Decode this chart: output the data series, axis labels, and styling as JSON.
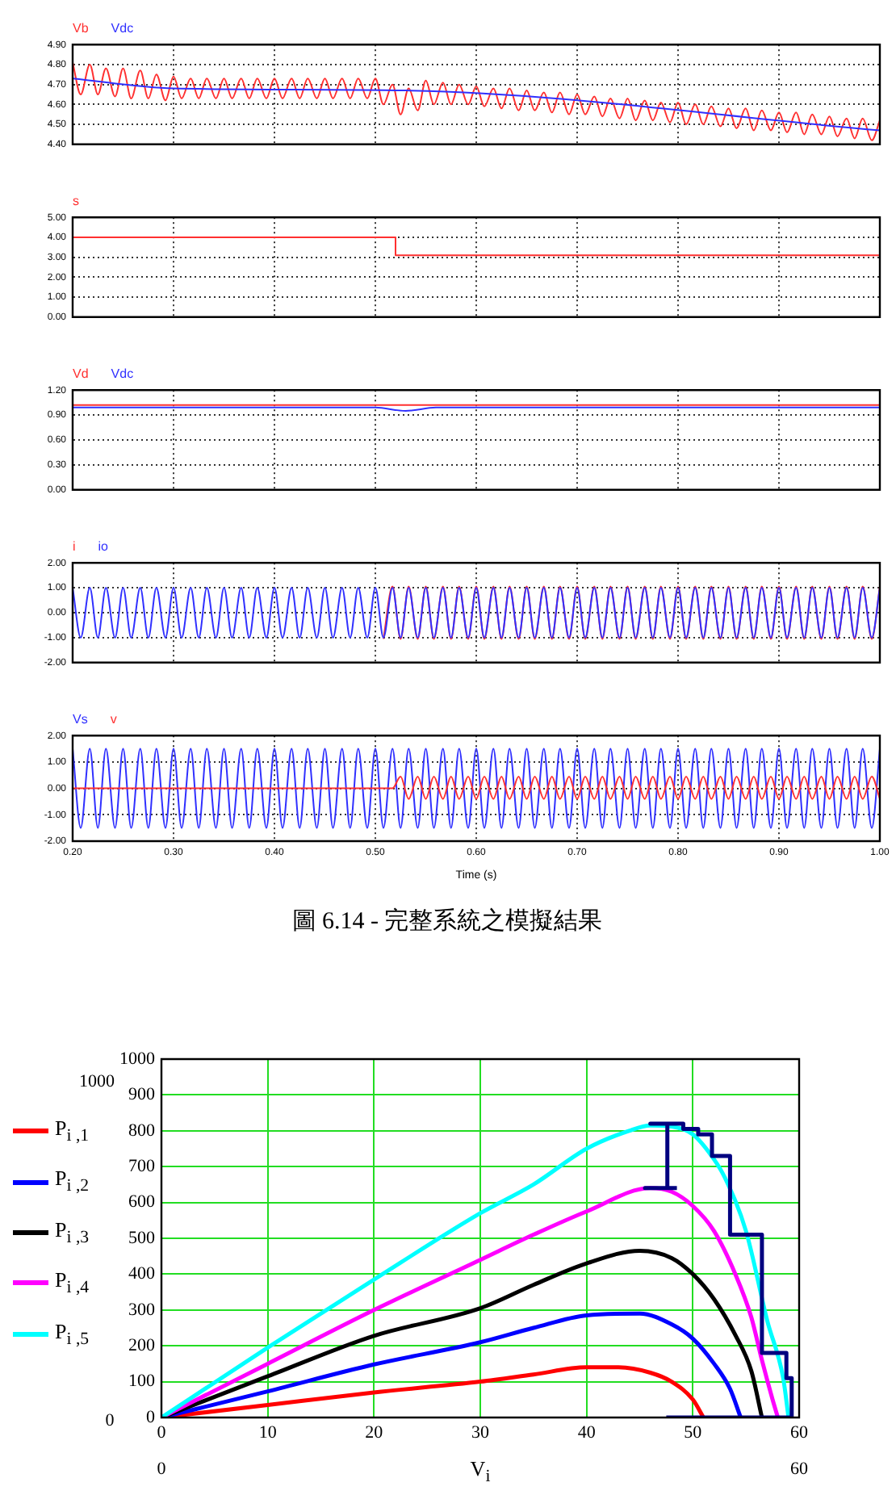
{
  "chart_data": [
    {
      "type": "line",
      "x": [
        0.2,
        0.208,
        0.217,
        0.225,
        0.233,
        0.242,
        0.25,
        0.258,
        0.267,
        0.275,
        0.283,
        0.292,
        0.3,
        0.308,
        0.317,
        0.325,
        0.333,
        0.342,
        0.35,
        0.358,
        0.367,
        0.375,
        0.383,
        0.392,
        0.4,
        0.408,
        0.417,
        0.425,
        0.433,
        0.442,
        0.45,
        0.458,
        0.467,
        0.475,
        0.483,
        0.492,
        0.5,
        0.508,
        0.517,
        0.525,
        0.533,
        0.542,
        0.55,
        0.558,
        0.567,
        0.575,
        0.583,
        0.592,
        0.6,
        0.608,
        0.617,
        0.625,
        0.633,
        0.642,
        0.65,
        0.658,
        0.667,
        0.675,
        0.683,
        0.692,
        0.7,
        0.708,
        0.717,
        0.725,
        0.733,
        0.742,
        0.75,
        0.758,
        0.767,
        0.775,
        0.783,
        0.792,
        0.8,
        0.808,
        0.817,
        0.825,
        0.833,
        0.842,
        0.85,
        0.858,
        0.867,
        0.875,
        0.883,
        0.892,
        0.9,
        0.908,
        0.917,
        0.925,
        0.933,
        0.942,
        0.95,
        0.958,
        0.967,
        0.975,
        0.983,
        0.992,
        1.0
      ],
      "xlim": [
        0.2,
        1.0
      ],
      "xticks": [
        0.2,
        0.3,
        0.4,
        0.5,
        0.6,
        0.7,
        0.8,
        0.9,
        1.0
      ],
      "ylim": [
        4.4,
        4.9
      ],
      "yticks": [
        {
          "value": 4.4,
          "label": "4.40"
        },
        {
          "value": 4.5,
          "label": "4.50"
        },
        {
          "value": 4.6,
          "label": "4.60"
        },
        {
          "value": 4.7,
          "label": "4.70"
        },
        {
          "value": 4.8,
          "label": "4.80"
        },
        {
          "value": 4.9,
          "label": "4.90"
        }
      ],
      "grid": true,
      "legend": "top left",
      "tick_labels": "y",
      "series": [
        {
          "name": "Vb",
          "color": "#ff3030",
          "values": [
            4.81,
            4.65,
            4.8,
            4.65,
            4.78,
            4.64,
            4.78,
            4.63,
            4.77,
            4.63,
            4.75,
            4.62,
            4.74,
            4.63,
            4.73,
            4.63,
            4.73,
            4.63,
            4.73,
            4.63,
            4.73,
            4.63,
            4.73,
            4.63,
            4.73,
            4.63,
            4.73,
            4.63,
            4.73,
            4.63,
            4.73,
            4.63,
            4.73,
            4.63,
            4.73,
            4.63,
            4.73,
            4.6,
            4.7,
            4.55,
            4.68,
            4.57,
            4.72,
            4.6,
            4.71,
            4.6,
            4.7,
            4.6,
            4.69,
            4.59,
            4.68,
            4.58,
            4.68,
            4.57,
            4.67,
            4.57,
            4.66,
            4.56,
            4.66,
            4.55,
            4.65,
            4.55,
            4.64,
            4.54,
            4.63,
            4.53,
            4.63,
            4.52,
            4.62,
            4.52,
            4.61,
            4.51,
            4.61,
            4.5,
            4.6,
            4.5,
            4.59,
            4.49,
            4.58,
            4.48,
            4.58,
            4.47,
            4.57,
            4.47,
            4.56,
            4.46,
            4.56,
            4.45,
            4.55,
            4.45,
            4.54,
            4.44,
            4.53,
            4.43,
            4.53,
            4.42,
            4.52
          ]
        },
        {
          "name": "Vdc",
          "color": "#3030ff",
          "x": [
            0.2,
            0.3,
            0.53,
            1.0
          ],
          "values": [
            4.73,
            4.68,
            4.67,
            4.47
          ]
        }
      ]
    },
    {
      "type": "line",
      "xlim": [
        0.2,
        1.0
      ],
      "xticks": [
        0.2,
        0.3,
        0.4,
        0.5,
        0.6,
        0.7,
        0.8,
        0.9,
        1.0
      ],
      "ylim": [
        0,
        5
      ],
      "yticks": [
        {
          "value": 0,
          "label": "0.00"
        },
        {
          "value": 1,
          "label": "1.00"
        },
        {
          "value": 2,
          "label": "2.00"
        },
        {
          "value": 3,
          "label": "3.00"
        },
        {
          "value": 4,
          "label": "4.00"
        },
        {
          "value": 5,
          "label": "5.00"
        }
      ],
      "grid": true,
      "legend": "top left",
      "tick_labels": "y",
      "series": [
        {
          "name": "s",
          "color": "#ff3030",
          "x": [
            0.2,
            0.52,
            0.52,
            1.0
          ],
          "values": [
            4,
            4,
            3.1,
            3.1
          ]
        }
      ]
    },
    {
      "type": "line",
      "xlim": [
        0.2,
        1.0
      ],
      "xticks": [
        0.2,
        0.3,
        0.4,
        0.5,
        0.6,
        0.7,
        0.8,
        0.9,
        1.0
      ],
      "ylim": [
        0,
        1.2
      ],
      "yticks": [
        {
          "value": 0,
          "label": "0.00"
        },
        {
          "value": 0.3,
          "label": "0.30"
        },
        {
          "value": 0.6,
          "label": "0.60"
        },
        {
          "value": 0.9,
          "label": "0.90"
        },
        {
          "value": 1.2,
          "label": "1.20"
        }
      ],
      "grid": true,
      "legend": "top left",
      "tick_labels": "y",
      "series": [
        {
          "name": "Vd",
          "color": "#ff3030",
          "x": [
            0.2,
            0.5,
            0.53,
            0.56,
            1.0
          ],
          "values": [
            1.02,
            1.02,
            1.02,
            1.02,
            1.02
          ]
        },
        {
          "name": "Vdc",
          "color": "#3030ff",
          "x": [
            0.2,
            0.5,
            0.53,
            0.56,
            1.0
          ],
          "values": [
            0.99,
            0.99,
            0.95,
            0.99,
            0.99
          ]
        }
      ]
    },
    {
      "type": "line",
      "x": [
        0.2,
        0.208,
        0.217,
        0.225,
        0.233,
        0.242,
        0.25,
        0.258,
        0.267,
        0.275,
        0.283,
        0.292,
        0.3,
        0.308,
        0.317,
        0.325,
        0.333,
        0.342,
        0.35,
        0.358,
        0.367,
        0.375,
        0.383,
        0.392,
        0.4,
        0.408,
        0.417,
        0.425,
        0.433,
        0.442,
        0.45,
        0.458,
        0.467,
        0.475,
        0.483,
        0.492,
        0.5,
        0.508,
        0.517,
        0.525,
        0.533,
        0.542,
        0.55,
        0.558,
        0.567,
        0.575,
        0.583,
        0.592,
        0.6,
        0.608,
        0.617,
        0.625,
        0.633,
        0.642,
        0.65,
        0.658,
        0.667,
        0.675,
        0.683,
        0.692,
        0.7,
        0.708,
        0.717,
        0.725,
        0.733,
        0.742,
        0.75,
        0.758,
        0.767,
        0.775,
        0.783,
        0.792,
        0.8,
        0.808,
        0.817,
        0.825,
        0.833,
        0.842,
        0.85,
        0.858,
        0.867,
        0.875,
        0.883,
        0.892,
        0.9,
        0.908,
        0.917,
        0.925,
        0.933,
        0.942,
        0.95,
        0.958,
        0.967,
        0.975,
        0.983,
        0.992,
        1.0
      ],
      "xlim": [
        0.2,
        1.0
      ],
      "xticks": [
        0.2,
        0.3,
        0.4,
        0.5,
        0.6,
        0.7,
        0.8,
        0.9,
        1.0
      ],
      "ylim": [
        -2,
        2
      ],
      "yticks": [
        {
          "value": -2,
          "label": "-2.00"
        },
        {
          "value": -1,
          "label": "-1.00"
        },
        {
          "value": 0,
          "label": "0.00"
        },
        {
          "value": 1,
          "label": "1.00"
        },
        {
          "value": 2,
          "label": "2.00"
        }
      ],
      "grid": true,
      "legend": "top left",
      "tick_labels": "y",
      "series": [
        {
          "name": "i",
          "color": "#ff3030",
          "values": [
            null,
            null,
            null,
            null,
            null,
            null,
            null,
            null,
            null,
            null,
            null,
            null,
            null,
            null,
            null,
            null,
            null,
            null,
            null,
            null,
            null,
            null,
            null,
            null,
            null,
            null,
            null,
            null,
            null,
            null,
            null,
            null,
            null,
            null,
            null,
            null,
            null,
            -1.05,
            1.05,
            -1.05,
            1.05,
            -1.05,
            1.05,
            -1.05,
            1.05,
            -1.05,
            1.05,
            -1.05,
            1.05,
            -1.05,
            1.05,
            -1.05,
            1.05,
            -1.05,
            1.05,
            -1.05,
            1.05,
            -1.05,
            1.05,
            -1.05,
            1.05,
            -1.05,
            1.05,
            -1.05,
            1.05,
            -1.05,
            1.05,
            -1.05,
            1.05,
            -1.05,
            1.05,
            -1.05,
            1.05,
            -1.05,
            1.05,
            -1.05,
            1.05,
            -1.05,
            1.05,
            -1.05,
            1.05,
            -1.05,
            1.05,
            -1.05,
            1.05,
            -1.05,
            1.05,
            -1.05,
            1.05,
            -1.05,
            1.05,
            -1.05,
            1.05,
            -1.05,
            1.05,
            -1.05,
            1.05
          ]
        },
        {
          "name": "io",
          "color": "#3030ff",
          "values": [
            1,
            -1,
            1,
            -1,
            1,
            -1,
            1,
            -1,
            1,
            -1,
            1,
            -1,
            1,
            -1,
            1,
            -1,
            1,
            -1,
            1,
            -1,
            1,
            -1,
            1,
            -1,
            1,
            -1,
            1,
            -1,
            1,
            -1,
            1,
            -1,
            1,
            -1,
            1,
            -1,
            1,
            -1,
            1,
            -1,
            1,
            -1,
            1,
            -1,
            1,
            -1,
            1,
            -1,
            1,
            -1,
            1,
            -1,
            1,
            -1,
            1,
            -1,
            1,
            -1,
            1,
            -1,
            1,
            -1,
            1,
            -1,
            1,
            -1,
            1,
            -1,
            1,
            -1,
            1,
            -1,
            1,
            -1,
            1,
            -1,
            1,
            -1,
            1,
            -1,
            1,
            -1,
            1,
            -1,
            1,
            -1,
            1,
            -1,
            1,
            -1,
            1,
            -1,
            1,
            -1,
            1,
            -1,
            1
          ]
        }
      ]
    },
    {
      "type": "line",
      "x": [
        0.2,
        0.208,
        0.217,
        0.225,
        0.233,
        0.242,
        0.25,
        0.258,
        0.267,
        0.275,
        0.283,
        0.292,
        0.3,
        0.308,
        0.317,
        0.325,
        0.333,
        0.342,
        0.35,
        0.358,
        0.367,
        0.375,
        0.383,
        0.392,
        0.4,
        0.408,
        0.417,
        0.425,
        0.433,
        0.442,
        0.45,
        0.458,
        0.467,
        0.475,
        0.483,
        0.492,
        0.5,
        0.508,
        0.517,
        0.525,
        0.533,
        0.542,
        0.55,
        0.558,
        0.567,
        0.575,
        0.583,
        0.592,
        0.6,
        0.608,
        0.617,
        0.625,
        0.633,
        0.642,
        0.65,
        0.658,
        0.667,
        0.675,
        0.683,
        0.692,
        0.7,
        0.708,
        0.717,
        0.725,
        0.733,
        0.742,
        0.75,
        0.758,
        0.767,
        0.775,
        0.783,
        0.792,
        0.8,
        0.808,
        0.817,
        0.825,
        0.833,
        0.842,
        0.85,
        0.858,
        0.867,
        0.875,
        0.883,
        0.892,
        0.9,
        0.908,
        0.917,
        0.925,
        0.933,
        0.942,
        0.95,
        0.958,
        0.967,
        0.975,
        0.983,
        0.992,
        1.0
      ],
      "xlim": [
        0.2,
        1.0
      ],
      "xticks": [
        {
          "value": 0.2,
          "label": "0.20"
        },
        {
          "value": 0.3,
          "label": "0.30"
        },
        {
          "value": 0.4,
          "label": "0.40"
        },
        {
          "value": 0.5,
          "label": "0.50"
        },
        {
          "value": 0.6,
          "label": "0.60"
        },
        {
          "value": 0.7,
          "label": "0.70"
        },
        {
          "value": 0.8,
          "label": "0.80"
        },
        {
          "value": 0.9,
          "label": "0.90"
        },
        {
          "value": 1.0,
          "label": "1.00"
        }
      ],
      "xlabel": "Time (s)",
      "ylim": [
        -2,
        2
      ],
      "yticks": [
        {
          "value": -2,
          "label": "-2.00"
        },
        {
          "value": -1,
          "label": "-1.00"
        },
        {
          "value": 0,
          "label": "0.00"
        },
        {
          "value": 1,
          "label": "1.00"
        },
        {
          "value": 2,
          "label": "2.00"
        }
      ],
      "grid": true,
      "legend": "top left",
      "annotations": [
        "圖 6.14 - 完整系統之模擬結果"
      ],
      "series": [
        {
          "name": "Vs",
          "color": "#3030ff",
          "values": [
            1.5,
            -1.5,
            1.5,
            -1.5,
            1.5,
            -1.5,
            1.5,
            -1.5,
            1.5,
            -1.5,
            1.5,
            -1.5,
            1.5,
            -1.5,
            1.5,
            -1.5,
            1.5,
            -1.5,
            1.5,
            -1.5,
            1.5,
            -1.5,
            1.5,
            -1.5,
            1.5,
            -1.5,
            1.5,
            -1.5,
            1.5,
            -1.5,
            1.5,
            -1.5,
            1.5,
            -1.5,
            1.5,
            -1.5,
            1.5,
            -1.5,
            1.5,
            -1.5,
            1.5,
            -1.5,
            1.5,
            -1.5,
            1.5,
            -1.5,
            1.5,
            -1.5,
            1.5,
            -1.5,
            1.5,
            -1.5,
            1.5,
            -1.5,
            1.5,
            -1.5,
            1.5,
            -1.5,
            1.5,
            -1.5,
            1.5,
            -1.5,
            1.5,
            -1.5,
            1.5,
            -1.5,
            1.5,
            -1.5,
            1.5,
            -1.5,
            1.5,
            -1.5,
            1.5,
            -1.5,
            1.5,
            -1.5,
            1.5,
            -1.5,
            1.5,
            -1.5,
            1.5,
            -1.5,
            1.5,
            -1.5,
            1.5,
            -1.5,
            1.5,
            -1.5,
            1.5,
            -1.5,
            1.5,
            -1.5,
            1.5,
            -1.5,
            1.5,
            -1.5,
            1.5
          ]
        },
        {
          "name": "v",
          "color": "#ff3030",
          "values": [
            0,
            0,
            0,
            0,
            0,
            0,
            0,
            0,
            0,
            0,
            0,
            0,
            0,
            0,
            0,
            0,
            0,
            0,
            0,
            0,
            0,
            0,
            0,
            0,
            0,
            0,
            0,
            0,
            0,
            0,
            0,
            0,
            0,
            0,
            0,
            0,
            0,
            0,
            0,
            0.45,
            -0.4,
            0.45,
            -0.4,
            0.45,
            -0.4,
            0.45,
            -0.4,
            0.45,
            -0.4,
            0.45,
            -0.4,
            0.45,
            -0.4,
            0.45,
            -0.4,
            0.45,
            -0.4,
            0.45,
            -0.4,
            0.45,
            -0.4,
            0.45,
            -0.4,
            0.45,
            -0.4,
            0.45,
            -0.4,
            0.45,
            -0.4,
            0.45,
            -0.4,
            0.45,
            -0.4,
            0.45,
            -0.4,
            0.45,
            -0.4,
            0.45,
            -0.4,
            0.45,
            -0.4,
            0.45,
            -0.4,
            0.45,
            -0.4,
            0.45,
            -0.4,
            0.45,
            -0.4,
            0.45,
            -0.4,
            0.45,
            -0.4,
            0.45,
            -0.4,
            0.45,
            -0.4
          ]
        }
      ]
    },
    {
      "type": "line",
      "xlim": [
        0,
        60
      ],
      "xticks": [
        0,
        10,
        20,
        30,
        40,
        50,
        60
      ],
      "xlabel": "V$_{i}$",
      "ylim": [
        0,
        1000
      ],
      "yticks": [
        0,
        100,
        200,
        300,
        400,
        500,
        600,
        700,
        800,
        900,
        1000
      ],
      "grid": true,
      "legend": "left",
      "annotations": [
        "1000",
        "0",
        "0",
        "60"
      ],
      "series": [
        {
          "name": "P$_{i ,1}$",
          "color": "#ff0000",
          "x": [
            0,
            10,
            20,
            30,
            35,
            40,
            43,
            46,
            48,
            50,
            51
          ],
          "values": [
            0,
            35,
            70,
            100,
            120,
            140,
            140,
            125,
            100,
            50,
            0
          ]
        },
        {
          "name": "P$_{i ,2}$",
          "color": "#0000ff",
          "x": [
            0,
            10,
            20,
            30,
            35,
            40,
            45,
            48,
            50,
            52,
            53.5,
            54.5
          ],
          "values": [
            0,
            73,
            148,
            210,
            250,
            285,
            290,
            260,
            220,
            150,
            80,
            0
          ]
        },
        {
          "name": "P$_{i ,3}$",
          "color": "#000000",
          "x": [
            0,
            10,
            20,
            30,
            35,
            40,
            45,
            48,
            50,
            52,
            54,
            55.5,
            56.5
          ],
          "values": [
            0,
            115,
            228,
            305,
            370,
            430,
            465,
            445,
            400,
            330,
            230,
            130,
            0
          ]
        },
        {
          "name": "P$_{i ,4}$",
          "color": "#ff00ff",
          "x": [
            0,
            10,
            20,
            30,
            35,
            40,
            46,
            48,
            50,
            52,
            54,
            55.5,
            56.5,
            57.5,
            58
          ],
          "values": [
            0,
            150,
            300,
            440,
            510,
            575,
            640,
            630,
            590,
            520,
            400,
            280,
            160,
            50,
            0
          ]
        },
        {
          "name": "P$_{i ,5}$",
          "color": "#00ffff",
          "x": [
            0,
            10,
            20,
            30,
            35,
            40,
            44,
            46,
            48,
            50,
            52,
            53,
            55,
            57,
            58.5,
            59
          ],
          "values": [
            0,
            195,
            385,
            570,
            650,
            750,
            800,
            815,
            812,
            790,
            720,
            670,
            520,
            270,
            110,
            0
          ]
        },
        {
          "color": "#000080",
          "x": [
            47.5,
            59.3,
            59.3,
            58.8,
            58.8,
            56.5,
            56.5,
            53.5,
            53.5,
            51.8,
            51.8,
            50.5,
            50.5,
            49.1,
            49.1,
            46,
            47.6,
            47.6,
            45.5,
            48.5
          ],
          "values": [
            0,
            0,
            110,
            110,
            180,
            180,
            510,
            510,
            730,
            730,
            790,
            790,
            805,
            805,
            820,
            820,
            820,
            640,
            640,
            640
          ]
        }
      ]
    }
  ]
}
